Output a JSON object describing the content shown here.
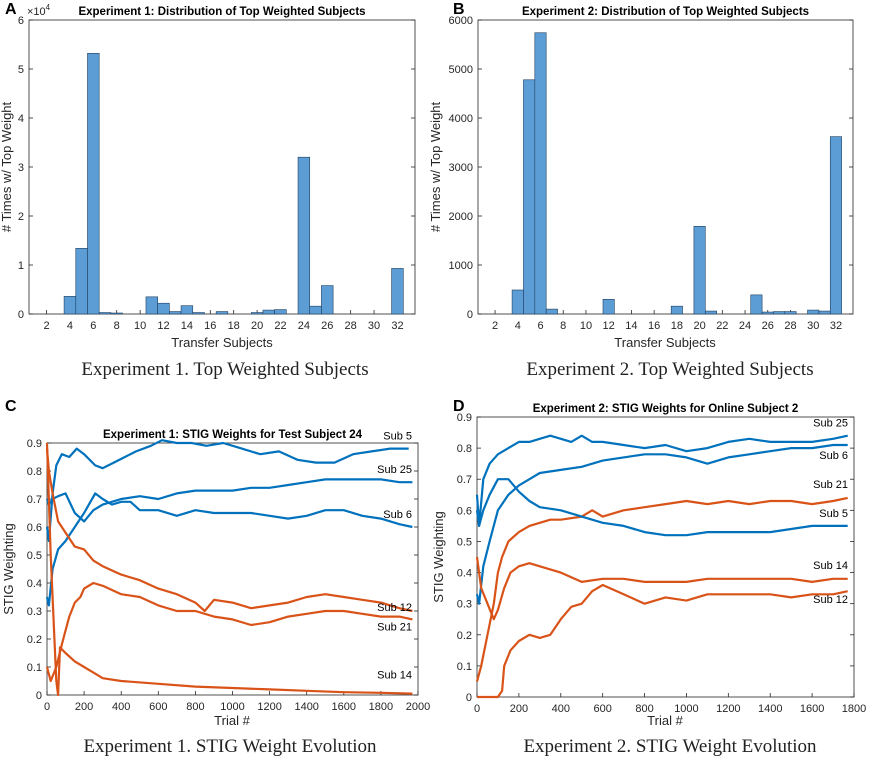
{
  "chart_data": [
    {
      "type": "bar",
      "panel": "A",
      "title": "Experiment 1: Distribution of Top Weighted Subjects",
      "xlabel": "Transfer Subjects",
      "ylabel": "# Times w/ Top Weight",
      "caption": "Experiment 1. Top Weighted Subjects",
      "multiplier": "×10^4",
      "multiplier_base": "×10",
      "multiplier_exp": "4",
      "categories": [
        1,
        2,
        3,
        4,
        5,
        6,
        7,
        8,
        9,
        10,
        11,
        12,
        13,
        14,
        15,
        16,
        17,
        18,
        19,
        20,
        21,
        22,
        23,
        24,
        25,
        26,
        27,
        28,
        29,
        30,
        31,
        32
      ],
      "values": [
        0,
        0,
        0,
        3.6,
        13.4,
        53.2,
        0.3,
        0.2,
        0,
        0,
        3.5,
        2.2,
        0.5,
        1.7,
        0.3,
        0,
        0.5,
        0,
        0,
        0.3,
        0.8,
        0.9,
        0,
        32.0,
        1.6,
        5.8,
        0,
        0,
        0,
        0,
        0,
        9.3
      ],
      "xlim": [
        0.5,
        33.5
      ],
      "ylim": [
        0,
        60
      ],
      "xticks": [
        "2",
        "4",
        "6",
        "8",
        "10",
        "12",
        "14",
        "16",
        "18",
        "20",
        "22",
        "24",
        "26",
        "28",
        "30",
        "32"
      ],
      "yticks": [
        "0",
        "1",
        "2",
        "3",
        "4",
        "5",
        "6"
      ]
    },
    {
      "type": "bar",
      "panel": "B",
      "title": "Experiment 2: Distribution of Top Weighted Subjects",
      "xlabel": "Transfer Subjects",
      "ylabel": "# Times w/ Top Weight",
      "caption": "Experiment 2. Top Weighted Subjects",
      "categories": [
        1,
        2,
        3,
        4,
        5,
        6,
        7,
        8,
        9,
        10,
        11,
        12,
        13,
        14,
        15,
        16,
        17,
        18,
        19,
        20,
        21,
        22,
        23,
        24,
        25,
        26,
        27,
        28,
        29,
        30,
        31,
        32
      ],
      "values": [
        0,
        0,
        0,
        490,
        4780,
        5740,
        100,
        0,
        0,
        0,
        0,
        300,
        0,
        0,
        0,
        0,
        0,
        160,
        0,
        1790,
        60,
        0,
        0,
        0,
        390,
        40,
        50,
        50,
        0,
        80,
        60,
        3620
      ],
      "xlim": [
        0.5,
        33.5
      ],
      "ylim": [
        0,
        6000
      ],
      "xticks": [
        "2",
        "4",
        "6",
        "8",
        "10",
        "12",
        "14",
        "16",
        "18",
        "20",
        "22",
        "24",
        "26",
        "28",
        "30",
        "32"
      ],
      "yticks": [
        "0",
        "1000",
        "2000",
        "3000",
        "4000",
        "5000",
        "6000"
      ]
    },
    {
      "type": "line",
      "panel": "C",
      "title": "Experiment 1: STIG Weights for Test Subject 24",
      "xlabel": "Trial #",
      "ylabel": "STIG Weighting",
      "caption": "Experiment 1. STIG Weight Evolution",
      "xlim": [
        0,
        2000
      ],
      "ylim": [
        0,
        0.9
      ],
      "xticks": [
        "0",
        "200",
        "400",
        "600",
        "800",
        "1000",
        "1200",
        "1400",
        "1600",
        "1800",
        "2000"
      ],
      "yticks": [
        "0",
        "0.1",
        "0.2",
        "0.3",
        "0.4",
        "0.5",
        "0.6",
        "0.7",
        "0.8",
        "0.9"
      ],
      "series": [
        {
          "name": "Sub 5",
          "color": "#0072bd",
          "x": [
            0,
            10,
            30,
            50,
            80,
            120,
            160,
            200,
            260,
            300,
            360,
            420,
            480,
            560,
            620,
            700,
            780,
            860,
            950,
            1050,
            1150,
            1250,
            1350,
            1450,
            1550,
            1650,
            1750,
            1850,
            1950
          ],
          "y": [
            0.6,
            0.55,
            0.72,
            0.82,
            0.86,
            0.85,
            0.88,
            0.86,
            0.82,
            0.81,
            0.83,
            0.85,
            0.87,
            0.89,
            0.91,
            0.9,
            0.9,
            0.89,
            0.9,
            0.88,
            0.86,
            0.87,
            0.84,
            0.83,
            0.83,
            0.86,
            0.87,
            0.88,
            0.88
          ]
        },
        {
          "name": "Sub 25",
          "color": "#0072bd",
          "x": [
            0,
            10,
            30,
            60,
            100,
            150,
            200,
            250,
            300,
            400,
            500,
            600,
            700,
            800,
            900,
            1000,
            1100,
            1200,
            1300,
            1400,
            1500,
            1600,
            1700,
            1800,
            1900,
            1970
          ],
          "y": [
            0.7,
            0.68,
            0.7,
            0.71,
            0.72,
            0.65,
            0.62,
            0.66,
            0.68,
            0.7,
            0.71,
            0.7,
            0.72,
            0.73,
            0.73,
            0.73,
            0.74,
            0.74,
            0.75,
            0.76,
            0.77,
            0.77,
            0.77,
            0.77,
            0.76,
            0.76
          ]
        },
        {
          "name": "Sub 6",
          "color": "#0072bd",
          "x": [
            0,
            10,
            30,
            60,
            100,
            150,
            200,
            260,
            300,
            350,
            400,
            450,
            500,
            600,
            700,
            800,
            900,
            1000,
            1100,
            1200,
            1300,
            1400,
            1500,
            1600,
            1700,
            1800,
            1900,
            1970
          ],
          "y": [
            0.35,
            0.32,
            0.45,
            0.52,
            0.55,
            0.6,
            0.65,
            0.72,
            0.7,
            0.68,
            0.69,
            0.69,
            0.66,
            0.66,
            0.64,
            0.66,
            0.65,
            0.65,
            0.65,
            0.64,
            0.63,
            0.64,
            0.66,
            0.66,
            0.64,
            0.63,
            0.61,
            0.6
          ]
        },
        {
          "name": "Sub 12",
          "color": "#d95319",
          "x": [
            0,
            10,
            30,
            60,
            100,
            150,
            200,
            250,
            300,
            400,
            500,
            600,
            700,
            800,
            850,
            900,
            1000,
            1100,
            1200,
            1300,
            1400,
            1500,
            1600,
            1700,
            1800,
            1900,
            1970
          ],
          "y": [
            0.88,
            0.8,
            0.72,
            0.62,
            0.58,
            0.53,
            0.52,
            0.48,
            0.46,
            0.43,
            0.41,
            0.38,
            0.36,
            0.33,
            0.3,
            0.34,
            0.33,
            0.31,
            0.32,
            0.33,
            0.35,
            0.36,
            0.35,
            0.34,
            0.33,
            0.31,
            0.3
          ]
        },
        {
          "name": "Sub 21",
          "color": "#d95319",
          "x": [
            0,
            20,
            50,
            80,
            100,
            120,
            150,
            180,
            200,
            250,
            300,
            400,
            500,
            600,
            700,
            800,
            900,
            1000,
            1100,
            1200,
            1300,
            1400,
            1500,
            1600,
            1700,
            1800,
            1900,
            1970
          ],
          "y": [
            0.1,
            0.05,
            0.1,
            0.18,
            0.23,
            0.28,
            0.33,
            0.35,
            0.38,
            0.4,
            0.39,
            0.36,
            0.35,
            0.32,
            0.3,
            0.3,
            0.28,
            0.27,
            0.25,
            0.26,
            0.28,
            0.29,
            0.3,
            0.3,
            0.29,
            0.28,
            0.28,
            0.27
          ]
        },
        {
          "name": "Sub 14",
          "color": "#d95319",
          "x": [
            0,
            20,
            50,
            60,
            70,
            100,
            150,
            200,
            250,
            300,
            400,
            600,
            800,
            1000,
            1200,
            1400,
            1600,
            1800,
            1970
          ],
          "y": [
            0.9,
            0.5,
            0.05,
            0.0,
            0.17,
            0.15,
            0.12,
            0.1,
            0.08,
            0.06,
            0.05,
            0.04,
            0.03,
            0.025,
            0.02,
            0.015,
            0.01,
            0.008,
            0.005
          ]
        }
      ]
    },
    {
      "type": "line",
      "panel": "D",
      "title": "Experiment 2: STIG Weights for Online Subject 2",
      "xlabel": "Trial #",
      "ylabel": "STIG Weighting",
      "caption": "Experiment 2. STIG Weight Evolution",
      "xlim": [
        0,
        1800
      ],
      "ylim": [
        0,
        0.9
      ],
      "xticks": [
        "0",
        "200",
        "400",
        "600",
        "800",
        "1000",
        "1200",
        "1400",
        "1600",
        "1800"
      ],
      "yticks": [
        "0",
        "0.1",
        "0.2",
        "0.3",
        "0.4",
        "0.5",
        "0.6",
        "0.7",
        "0.8",
        "0.9"
      ],
      "series": [
        {
          "name": "Sub 25",
          "color": "#0072bd",
          "x": [
            0,
            10,
            30,
            60,
            100,
            150,
            200,
            250,
            300,
            350,
            400,
            450,
            500,
            550,
            600,
            700,
            800,
            900,
            1000,
            1100,
            1200,
            1300,
            1400,
            1500,
            1600,
            1700,
            1770
          ],
          "y": [
            0.65,
            0.55,
            0.7,
            0.75,
            0.78,
            0.8,
            0.82,
            0.82,
            0.83,
            0.84,
            0.83,
            0.82,
            0.84,
            0.82,
            0.82,
            0.81,
            0.8,
            0.81,
            0.79,
            0.8,
            0.82,
            0.83,
            0.82,
            0.82,
            0.82,
            0.83,
            0.84
          ]
        },
        {
          "name": "Sub 6",
          "color": "#0072bd",
          "x": [
            0,
            10,
            30,
            60,
            100,
            150,
            200,
            250,
            300,
            400,
            500,
            600,
            700,
            800,
            900,
            1000,
            1100,
            1200,
            1300,
            1400,
            1500,
            1600,
            1700,
            1770
          ],
          "y": [
            0.33,
            0.3,
            0.42,
            0.5,
            0.6,
            0.65,
            0.68,
            0.7,
            0.72,
            0.73,
            0.74,
            0.76,
            0.77,
            0.78,
            0.78,
            0.77,
            0.75,
            0.77,
            0.78,
            0.79,
            0.8,
            0.8,
            0.81,
            0.81
          ]
        },
        {
          "name": "Sub 21",
          "color": "#d95319",
          "x": [
            0,
            20,
            50,
            80,
            100,
            120,
            150,
            200,
            250,
            300,
            350,
            400,
            500,
            550,
            600,
            700,
            800,
            900,
            1000,
            1100,
            1200,
            1300,
            1400,
            1500,
            1600,
            1700,
            1770
          ],
          "y": [
            0.05,
            0.1,
            0.2,
            0.3,
            0.4,
            0.45,
            0.5,
            0.53,
            0.55,
            0.56,
            0.57,
            0.57,
            0.58,
            0.6,
            0.58,
            0.6,
            0.61,
            0.62,
            0.63,
            0.62,
            0.63,
            0.62,
            0.63,
            0.63,
            0.62,
            0.63,
            0.64
          ]
        },
        {
          "name": "Sub 5",
          "color": "#0072bd",
          "x": [
            0,
            10,
            30,
            60,
            100,
            150,
            200,
            250,
            300,
            400,
            500,
            600,
            700,
            800,
            900,
            1000,
            1100,
            1200,
            1300,
            1400,
            1500,
            1600,
            1700,
            1770
          ],
          "y": [
            0.6,
            0.55,
            0.6,
            0.65,
            0.7,
            0.7,
            0.66,
            0.63,
            0.61,
            0.6,
            0.58,
            0.56,
            0.55,
            0.53,
            0.52,
            0.52,
            0.53,
            0.53,
            0.53,
            0.53,
            0.54,
            0.55,
            0.55,
            0.55
          ]
        },
        {
          "name": "Sub 14",
          "color": "#d95319",
          "x": [
            0,
            20,
            50,
            80,
            100,
            130,
            160,
            200,
            250,
            300,
            400,
            500,
            600,
            700,
            800,
            900,
            1000,
            1100,
            1200,
            1300,
            1400,
            1500,
            1600,
            1700,
            1770
          ],
          "y": [
            0.45,
            0.35,
            0.3,
            0.25,
            0.28,
            0.35,
            0.4,
            0.42,
            0.43,
            0.42,
            0.4,
            0.37,
            0.38,
            0.38,
            0.37,
            0.37,
            0.37,
            0.38,
            0.38,
            0.38,
            0.38,
            0.38,
            0.37,
            0.38,
            0.38
          ]
        },
        {
          "name": "Sub 12",
          "color": "#d95319",
          "x": [
            0,
            50,
            100,
            120,
            130,
            160,
            200,
            250,
            300,
            350,
            400,
            450,
            500,
            550,
            600,
            700,
            800,
            900,
            1000,
            1100,
            1200,
            1300,
            1400,
            1500,
            1600,
            1700,
            1770
          ],
          "y": [
            0.0,
            0.0,
            0.0,
            0.02,
            0.1,
            0.15,
            0.18,
            0.2,
            0.19,
            0.2,
            0.25,
            0.29,
            0.3,
            0.34,
            0.36,
            0.33,
            0.3,
            0.32,
            0.31,
            0.33,
            0.33,
            0.33,
            0.33,
            0.32,
            0.33,
            0.33,
            0.34
          ]
        }
      ]
    }
  ]
}
